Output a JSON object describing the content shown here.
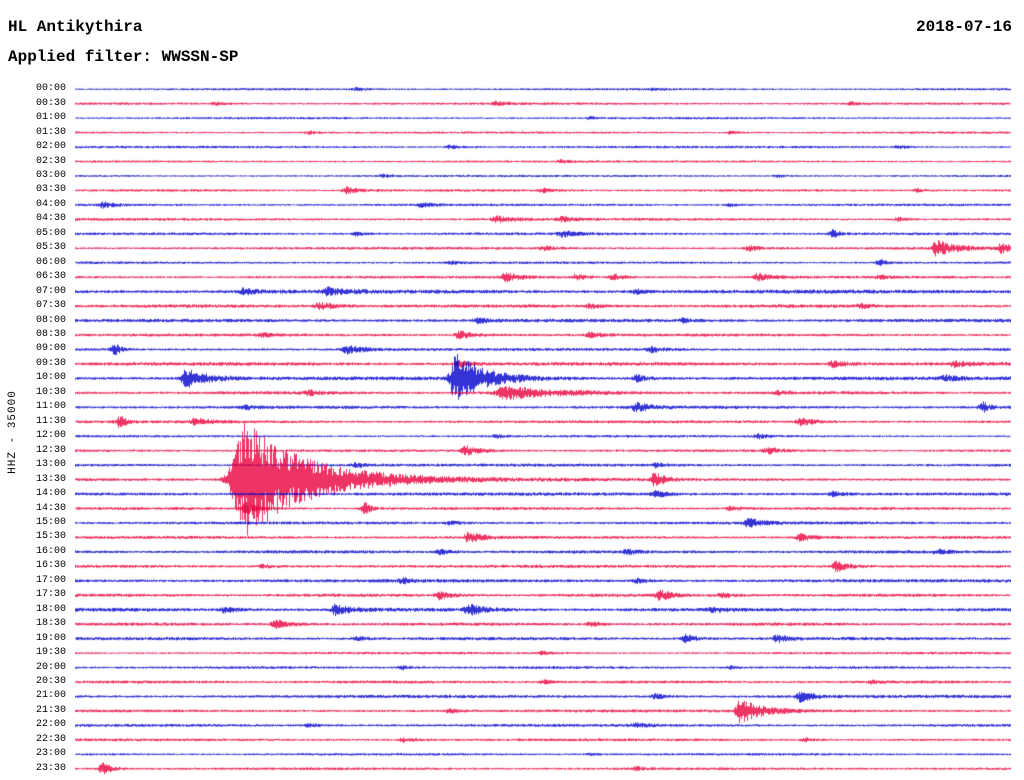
{
  "chart_data": {
    "type": "line",
    "subtype": "helicorder-seismogram",
    "title": "HL Antikythira",
    "date": "2018-07-16",
    "filter_label": "Applied filter: WWSSN-SP",
    "ylabel": "HHZ - 35000",
    "row_minutes": 30,
    "legend_position": "none",
    "grid": false,
    "colors": {
      "even_rows": "#0000cc",
      "odd_rows": "#e8003c",
      "text": "#000000",
      "background": "#ffffff"
    },
    "rows": [
      {
        "label": "00:00",
        "noise": 1.0,
        "events": [
          [
            0.3,
            1.5,
            10
          ],
          [
            0.62,
            1.2,
            8
          ]
        ]
      },
      {
        "label": "00:30",
        "noise": 1.1,
        "events": [
          [
            0.15,
            1.5,
            8
          ],
          [
            0.45,
            1.8,
            10
          ],
          [
            0.83,
            1.5,
            8
          ]
        ]
      },
      {
        "label": "01:00",
        "noise": 1.0,
        "events": [
          [
            0.55,
            1.3,
            8
          ]
        ]
      },
      {
        "label": "01:30",
        "noise": 1.0,
        "events": [
          [
            0.25,
            1.4,
            8
          ],
          [
            0.7,
            1.3,
            8
          ]
        ]
      },
      {
        "label": "02:00",
        "noise": 1.1,
        "events": [
          [
            0.4,
            1.6,
            10
          ],
          [
            0.88,
            1.4,
            8
          ]
        ]
      },
      {
        "label": "02:30",
        "noise": 1.0,
        "events": [
          [
            0.52,
            1.5,
            8
          ]
        ]
      },
      {
        "label": "03:00",
        "noise": 1.0,
        "events": [
          [
            0.33,
            1.4,
            8
          ],
          [
            0.75,
            1.3,
            8
          ]
        ]
      },
      {
        "label": "03:30",
        "noise": 1.1,
        "events": [
          [
            0.29,
            3.0,
            14
          ],
          [
            0.5,
            1.8,
            10
          ],
          [
            0.9,
            1.6,
            8
          ]
        ]
      },
      {
        "label": "04:00",
        "noise": 1.1,
        "events": [
          [
            0.03,
            3.0,
            10
          ],
          [
            0.37,
            2.0,
            12
          ],
          [
            0.7,
            1.5,
            8
          ]
        ]
      },
      {
        "label": "04:30",
        "noise": 1.2,
        "events": [
          [
            0.45,
            3.5,
            16
          ],
          [
            0.52,
            2.0,
            10
          ],
          [
            0.88,
            1.8,
            8
          ]
        ]
      },
      {
        "label": "05:00",
        "noise": 1.2,
        "events": [
          [
            0.3,
            1.6,
            8
          ],
          [
            0.52,
            2.6,
            14
          ],
          [
            0.81,
            3.5,
            6
          ]
        ]
      },
      {
        "label": "05:30",
        "noise": 1.2,
        "events": [
          [
            0.5,
            2.0,
            10
          ],
          [
            0.72,
            2.6,
            12
          ],
          [
            0.92,
            7.0,
            18
          ],
          [
            0.99,
            4.5,
            10
          ]
        ]
      },
      {
        "label": "06:00",
        "noise": 1.1,
        "events": [
          [
            0.4,
            1.6,
            10
          ],
          [
            0.86,
            3.0,
            8
          ]
        ]
      },
      {
        "label": "06:30",
        "noise": 1.2,
        "events": [
          [
            0.46,
            4.0,
            14
          ],
          [
            0.535,
            2.6,
            10
          ],
          [
            0.575,
            2.6,
            10
          ],
          [
            0.73,
            3.4,
            12
          ],
          [
            0.86,
            1.8,
            8
          ]
        ]
      },
      {
        "label": "07:00",
        "noise": 1.7,
        "events": [
          [
            0.18,
            2.6,
            14
          ],
          [
            0.27,
            3.2,
            16
          ],
          [
            0.6,
            2.0,
            10
          ]
        ]
      },
      {
        "label": "07:30",
        "noise": 1.5,
        "events": [
          [
            0.26,
            3.4,
            16
          ],
          [
            0.55,
            1.8,
            10
          ],
          [
            0.84,
            2.0,
            10
          ]
        ]
      },
      {
        "label": "08:00",
        "noise": 1.5,
        "events": [
          [
            0.43,
            2.2,
            12
          ],
          [
            0.65,
            1.8,
            10
          ]
        ]
      },
      {
        "label": "08:30",
        "noise": 1.3,
        "events": [
          [
            0.2,
            1.8,
            10
          ],
          [
            0.41,
            3.6,
            14
          ],
          [
            0.55,
            2.4,
            12
          ]
        ]
      },
      {
        "label": "09:00",
        "noise": 1.3,
        "events": [
          [
            0.043,
            5.0,
            5
          ],
          [
            0.29,
            3.8,
            16
          ],
          [
            0.615,
            2.4,
            12
          ]
        ]
      },
      {
        "label": "09:30",
        "noise": 1.6,
        "events": [
          [
            0.41,
            2.8,
            12
          ],
          [
            0.81,
            2.8,
            12
          ],
          [
            0.94,
            2.6,
            10
          ]
        ]
      },
      {
        "label": "10:00",
        "noise": 1.6,
        "events": [
          [
            0.118,
            9.0,
            20
          ],
          [
            0.407,
            22.0,
            28
          ],
          [
            0.6,
            3.0,
            10
          ],
          [
            0.93,
            2.4,
            10
          ]
        ]
      },
      {
        "label": "10:30",
        "noise": 1.4,
        "events": [
          [
            0.25,
            2.0,
            10
          ],
          [
            0.46,
            6.0,
            45
          ],
          [
            0.75,
            1.8,
            10
          ]
        ]
      },
      {
        "label": "11:00",
        "noise": 1.4,
        "events": [
          [
            0.18,
            2.2,
            10
          ],
          [
            0.6,
            4.0,
            12
          ],
          [
            0.97,
            4.5,
            6
          ]
        ]
      },
      {
        "label": "11:30",
        "noise": 1.3,
        "events": [
          [
            0.048,
            5.5,
            6
          ],
          [
            0.128,
            3.6,
            12
          ],
          [
            0.775,
            3.6,
            12
          ]
        ]
      },
      {
        "label": "12:00",
        "noise": 1.1,
        "events": [
          [
            0.45,
            1.6,
            8
          ],
          [
            0.73,
            2.0,
            10
          ]
        ]
      },
      {
        "label": "12:30",
        "noise": 1.2,
        "events": [
          [
            0.417,
            4.5,
            14
          ],
          [
            0.74,
            2.8,
            12
          ]
        ]
      },
      {
        "label": "13:00",
        "noise": 1.3,
        "events": [
          [
            0.3,
            2.0,
            10
          ],
          [
            0.62,
            1.8,
            10
          ]
        ]
      },
      {
        "label": "13:30",
        "noise": 1.4,
        "events": [
          [
            0.182,
            55.0,
            60
          ],
          [
            0.62,
            7.0,
            8
          ]
        ]
      },
      {
        "label": "14:00",
        "noise": 1.5,
        "events": [
          [
            0.62,
            3.0,
            10
          ],
          [
            0.81,
            2.2,
            10
          ]
        ]
      },
      {
        "label": "14:30",
        "noise": 1.3,
        "events": [
          [
            0.182,
            6.0,
            10
          ],
          [
            0.31,
            5.0,
            6
          ],
          [
            0.7,
            1.8,
            10
          ]
        ]
      },
      {
        "label": "15:00",
        "noise": 1.3,
        "events": [
          [
            0.4,
            1.8,
            10
          ],
          [
            0.72,
            4.5,
            12
          ]
        ]
      },
      {
        "label": "15:30",
        "noise": 1.3,
        "events": [
          [
            0.42,
            4.5,
            14
          ],
          [
            0.775,
            3.4,
            12
          ]
        ]
      },
      {
        "label": "16:00",
        "noise": 1.4,
        "events": [
          [
            0.39,
            2.2,
            10
          ],
          [
            0.59,
            2.0,
            10
          ],
          [
            0.92,
            1.8,
            10
          ]
        ]
      },
      {
        "label": "16:30",
        "noise": 1.4,
        "events": [
          [
            0.2,
            1.8,
            10
          ],
          [
            0.813,
            5.0,
            12
          ]
        ]
      },
      {
        "label": "17:00",
        "noise": 1.5,
        "events": [
          [
            0.35,
            2.0,
            10
          ],
          [
            0.6,
            2.0,
            10
          ]
        ]
      },
      {
        "label": "17:30",
        "noise": 1.4,
        "events": [
          [
            0.39,
            3.6,
            12
          ],
          [
            0.625,
            4.5,
            12
          ],
          [
            0.69,
            2.8,
            10
          ]
        ]
      },
      {
        "label": "18:00",
        "noise": 1.6,
        "events": [
          [
            0.16,
            2.8,
            12
          ],
          [
            0.278,
            4.5,
            14
          ],
          [
            0.42,
            5.0,
            14
          ],
          [
            0.68,
            2.0,
            10
          ]
        ]
      },
      {
        "label": "18:30",
        "noise": 1.4,
        "events": [
          [
            0.214,
            3.8,
            14
          ],
          [
            0.55,
            1.8,
            10
          ]
        ]
      },
      {
        "label": "19:00",
        "noise": 1.4,
        "events": [
          [
            0.3,
            1.8,
            10
          ],
          [
            0.652,
            3.8,
            10
          ],
          [
            0.75,
            3.4,
            10
          ]
        ]
      },
      {
        "label": "19:30",
        "noise": 1.1,
        "events": [
          [
            0.5,
            1.4,
            8
          ]
        ]
      },
      {
        "label": "20:00",
        "noise": 1.2,
        "events": [
          [
            0.35,
            1.5,
            8
          ],
          [
            0.7,
            1.4,
            8
          ]
        ]
      },
      {
        "label": "20:30",
        "noise": 1.3,
        "events": [
          [
            0.5,
            1.8,
            10
          ],
          [
            0.85,
            1.5,
            8
          ]
        ]
      },
      {
        "label": "21:00",
        "noise": 1.4,
        "events": [
          [
            0.62,
            2.2,
            10
          ],
          [
            0.775,
            5.0,
            12
          ]
        ]
      },
      {
        "label": "21:30",
        "noise": 1.3,
        "events": [
          [
            0.4,
            1.8,
            10
          ],
          [
            0.711,
            11.0,
            22
          ]
        ]
      },
      {
        "label": "22:00",
        "noise": 1.3,
        "events": [
          [
            0.25,
            1.6,
            8
          ],
          [
            0.6,
            2.0,
            10
          ]
        ]
      },
      {
        "label": "22:30",
        "noise": 1.2,
        "events": [
          [
            0.35,
            1.8,
            10
          ],
          [
            0.78,
            1.5,
            8
          ]
        ]
      },
      {
        "label": "23:00",
        "noise": 1.1,
        "events": [
          [
            0.55,
            1.4,
            8
          ]
        ]
      },
      {
        "label": "23:30",
        "noise": 1.2,
        "events": [
          [
            0.03,
            5.5,
            8
          ],
          [
            0.6,
            1.6,
            8
          ]
        ]
      }
    ]
  }
}
